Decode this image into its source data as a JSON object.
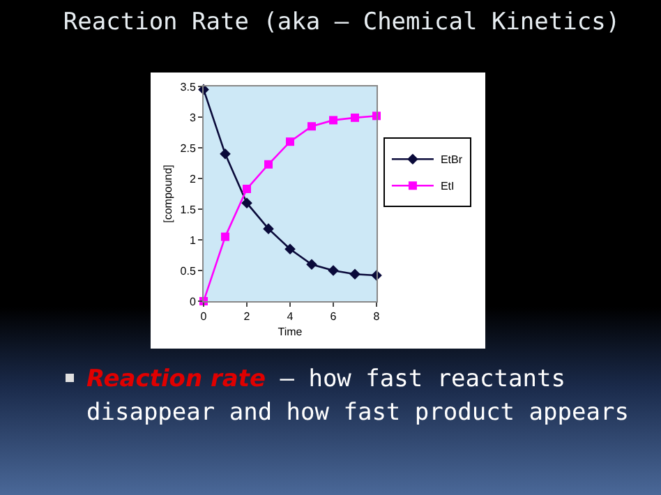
{
  "chart_data": {
    "type": "line",
    "title": "Reaction Rate  (aka – Chemical Kinetics)",
    "xlabel": "Time",
    "ylabel": "[compound]",
    "x": [
      0,
      1,
      2,
      3,
      4,
      5,
      6,
      7,
      8
    ],
    "series": [
      {
        "name": "EtBr",
        "color": "#0a0a3a",
        "marker": "diamond",
        "values": [
          3.45,
          2.4,
          1.6,
          1.18,
          0.85,
          0.6,
          0.5,
          0.44,
          0.42
        ]
      },
      {
        "name": "EtI",
        "color": "#ff00ff",
        "marker": "square",
        "values": [
          0,
          1.05,
          1.83,
          2.23,
          2.6,
          2.85,
          2.95,
          2.99,
          3.02
        ]
      }
    ],
    "xlim": [
      0,
      8
    ],
    "xticks": [
      0,
      2,
      4,
      6,
      8
    ],
    "ylim": [
      0,
      3.5
    ],
    "yticks": [
      0,
      0.5,
      1,
      1.5,
      2,
      2.5,
      3,
      3.5
    ],
    "grid": false,
    "legend": "right",
    "annotations": [
      "Reaction rate",
      " – how fast reactants disappear and how fast product appears"
    ]
  }
}
